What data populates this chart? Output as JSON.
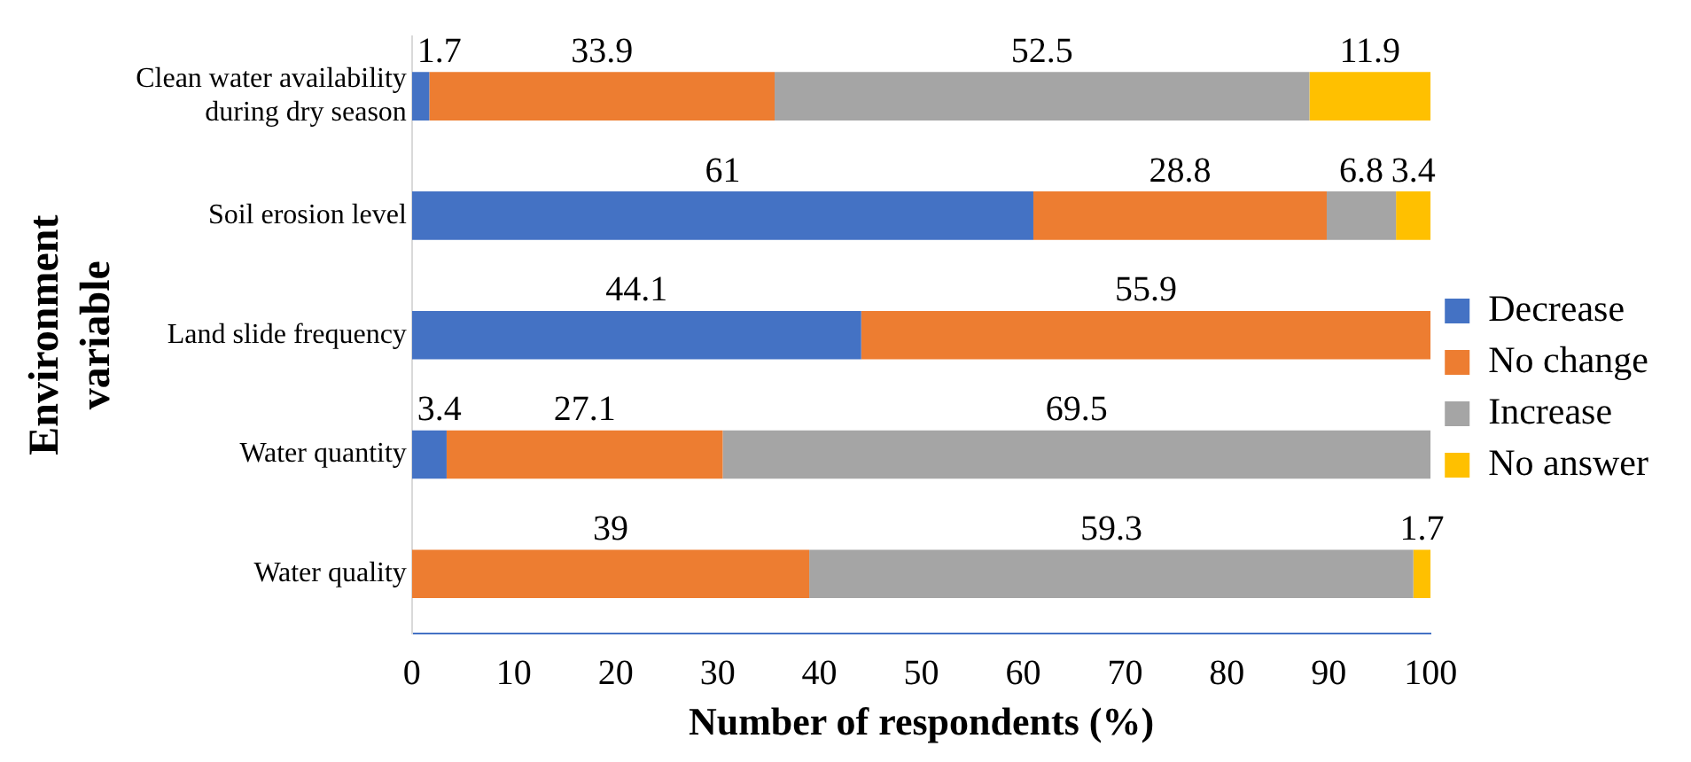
{
  "chart_data": {
    "type": "bar",
    "orientation": "horizontal",
    "stacked": true,
    "categories": [
      "Clean water availability during dry season",
      "Soil erosion level",
      "Land slide frequency",
      "Water quantity",
      "Water quality"
    ],
    "series": [
      {
        "name": "Decrease",
        "color": "#4472c4",
        "values": [
          1.7,
          61,
          44.1,
          3.4,
          null
        ]
      },
      {
        "name": "No change",
        "color": "#ed7d31",
        "values": [
          33.9,
          28.8,
          55.9,
          27.1,
          39
        ]
      },
      {
        "name": "Increase",
        "color": "#a5a5a5",
        "values": [
          52.5,
          6.8,
          null,
          69.5,
          59.3
        ]
      },
      {
        "name": "No answer",
        "color": "#ffc000",
        "values": [
          11.9,
          3.4,
          null,
          null,
          1.7
        ]
      }
    ],
    "xlim": [
      0,
      100
    ],
    "xticks": [
      0,
      10,
      20,
      30,
      40,
      50,
      60,
      70,
      80,
      90,
      100
    ],
    "xlabel": "Number of respondents (%)",
    "ylabel": "Environment variable",
    "legend": "right",
    "grid": false,
    "data_labels": true
  }
}
